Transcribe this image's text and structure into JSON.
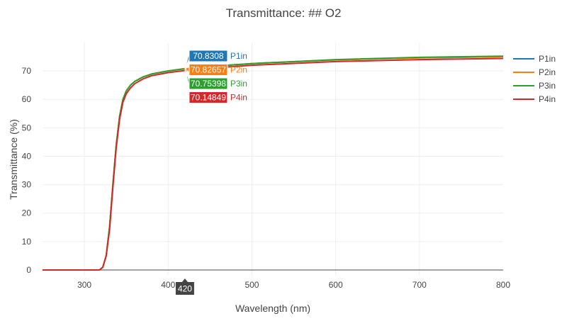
{
  "chart_data": {
    "type": "line",
    "title": "Transmittance: ## O2",
    "xlabel": "Wavelength (nm)",
    "ylabel": "Transmittance (%)",
    "xlim": [
      250,
      800
    ],
    "ylim": [
      -2,
      80
    ],
    "xticks": [
      300,
      400,
      500,
      600,
      700,
      800
    ],
    "yticks": [
      0,
      10,
      20,
      30,
      40,
      50,
      60,
      70
    ],
    "grid": true,
    "legend_position": "top-right",
    "hover": {
      "x": 420,
      "x_label": "420"
    },
    "series": [
      {
        "name": "P1in",
        "color": "#1f77b4",
        "hover_value": "70.8308",
        "x": [
          250,
          318,
          322,
          326,
          330,
          334,
          338,
          342,
          346,
          350,
          355,
          360,
          370,
          380,
          400,
          420,
          450,
          500,
          600,
          700,
          800
        ],
        "y": [
          0,
          0,
          1,
          5,
          15,
          30,
          44,
          54,
          60,
          63,
          65,
          66.3,
          67.9,
          68.9,
          70.0,
          70.83,
          71.6,
          72.6,
          73.9,
          74.6,
          75.0
        ]
      },
      {
        "name": "P2in",
        "color": "#ff7f0e",
        "hover_value": "70.82657",
        "x": [
          250,
          318,
          322,
          326,
          330,
          334,
          338,
          342,
          346,
          350,
          355,
          360,
          370,
          380,
          400,
          420,
          450,
          500,
          600,
          700,
          800
        ],
        "y": [
          0,
          0,
          1,
          5,
          15,
          30,
          44,
          54,
          60,
          63,
          65,
          66.3,
          67.9,
          68.9,
          70.0,
          70.83,
          71.6,
          72.6,
          73.9,
          74.6,
          75.0
        ]
      },
      {
        "name": "P3in",
        "color": "#2ca02c",
        "hover_value": "70.75398",
        "x": [
          250,
          318,
          322,
          326,
          330,
          334,
          338,
          342,
          346,
          350,
          355,
          360,
          370,
          380,
          400,
          420,
          450,
          500,
          600,
          700,
          800
        ],
        "y": [
          0,
          0,
          1,
          5,
          15,
          30,
          44,
          54,
          60,
          63,
          65,
          66.3,
          67.9,
          68.9,
          70.0,
          70.75,
          71.6,
          72.6,
          74.0,
          74.8,
          75.2
        ]
      },
      {
        "name": "P4in",
        "color": "#d62728",
        "hover_value": "70.14849",
        "x": [
          250,
          318,
          322,
          326,
          330,
          334,
          338,
          342,
          346,
          350,
          355,
          360,
          370,
          380,
          400,
          420,
          450,
          500,
          600,
          700,
          800
        ],
        "y": [
          0,
          0,
          1,
          5,
          14,
          29,
          43,
          53,
          59,
          62,
          64,
          65.5,
          67.2,
          68.3,
          69.4,
          70.15,
          71.0,
          72.0,
          73.3,
          74.0,
          74.4
        ]
      }
    ]
  }
}
